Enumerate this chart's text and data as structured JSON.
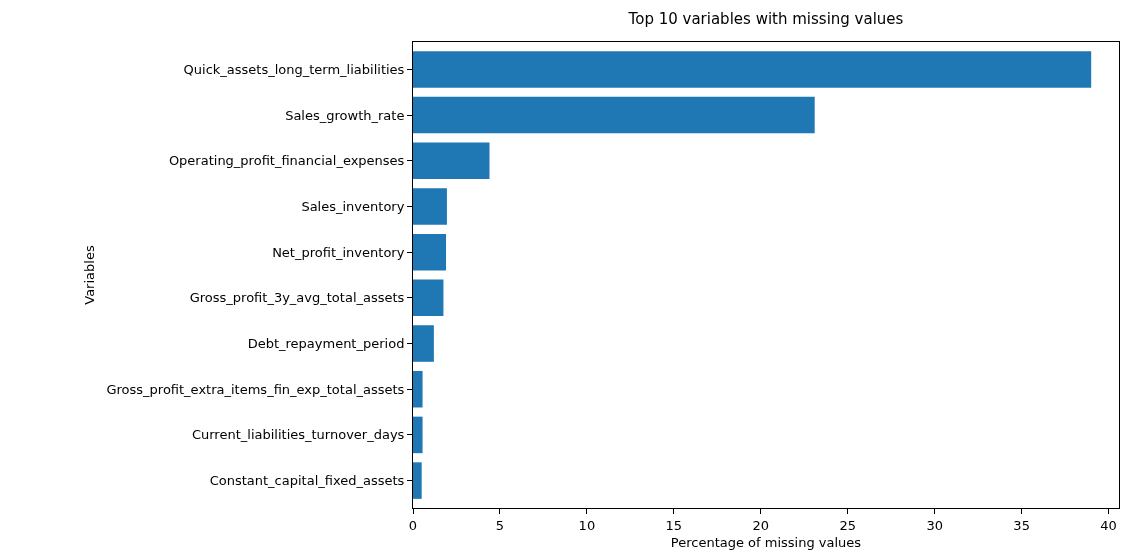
{
  "chart_data": {
    "type": "bar",
    "orientation": "horizontal",
    "title": "Top 10 variables with missing values",
    "xlabel": "Percentage of missing values",
    "ylabel": "Variables",
    "categories": [
      "Quick_assets_long_term_liabilities",
      "Sales_growth_rate",
      "Operating_profit_financial_expenses",
      "Sales_inventory",
      "Net_profit_inventory",
      "Gross_profit_3y_avg_total_assets",
      "Debt_repayment_period",
      "Gross_profit_extra_items_fin_exp_total_assets",
      "Current_liabilities_turnover_days",
      "Constant_capital_fixed_assets"
    ],
    "values": [
      39.0,
      23.1,
      4.4,
      1.95,
      1.9,
      1.75,
      1.2,
      0.55,
      0.55,
      0.5
    ],
    "color": "#1f77b4",
    "xlim": [
      0,
      40.6
    ],
    "xticks": [
      0,
      5,
      10,
      15,
      20,
      25,
      30,
      35,
      40
    ]
  }
}
